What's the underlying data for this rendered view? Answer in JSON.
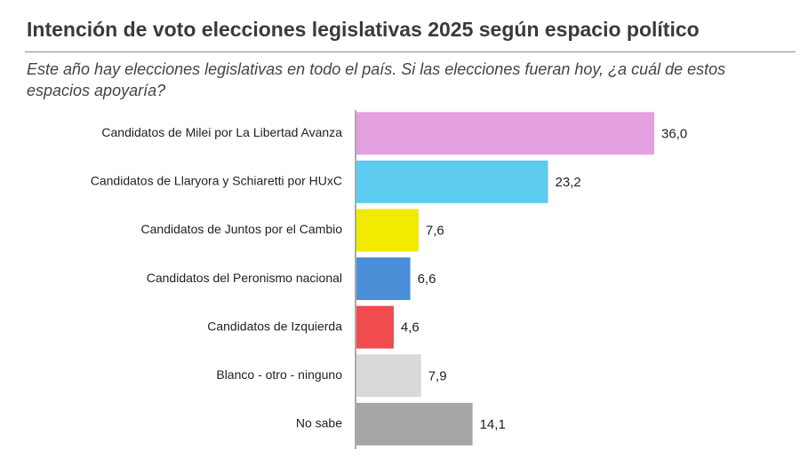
{
  "chart_data": {
    "type": "bar",
    "orientation": "horizontal",
    "title": "Intención de voto elecciones legislativas 2025 según espacio político",
    "subtitle": "Este año hay elecciones legislativas en todo el país. Si las elecciones fueran hoy, ¿a cuál de estos espacios apoyaría?",
    "categories": [
      "Candidatos de Milei por La Libertad Avanza",
      "Candidatos de Llaryora y Schiaretti por HUxC",
      "Candidatos de Juntos por el Cambio",
      "Candidatos del Peronismo nacional",
      "Candidatos de Izquierda",
      "Blanco - otro - ninguno",
      "No sabe"
    ],
    "values": [
      36.0,
      23.2,
      7.6,
      6.6,
      4.6,
      7.9,
      14.1
    ],
    "value_labels": [
      "36,0",
      "23,2",
      "7,6",
      "6,6",
      "4,6",
      "7,9",
      "14,1"
    ],
    "colors": [
      "#e39fdf",
      "#5ecbf0",
      "#f2ea00",
      "#4a8fd8",
      "#f04b4f",
      "#d9d9d9",
      "#a6a6a6"
    ]
  }
}
